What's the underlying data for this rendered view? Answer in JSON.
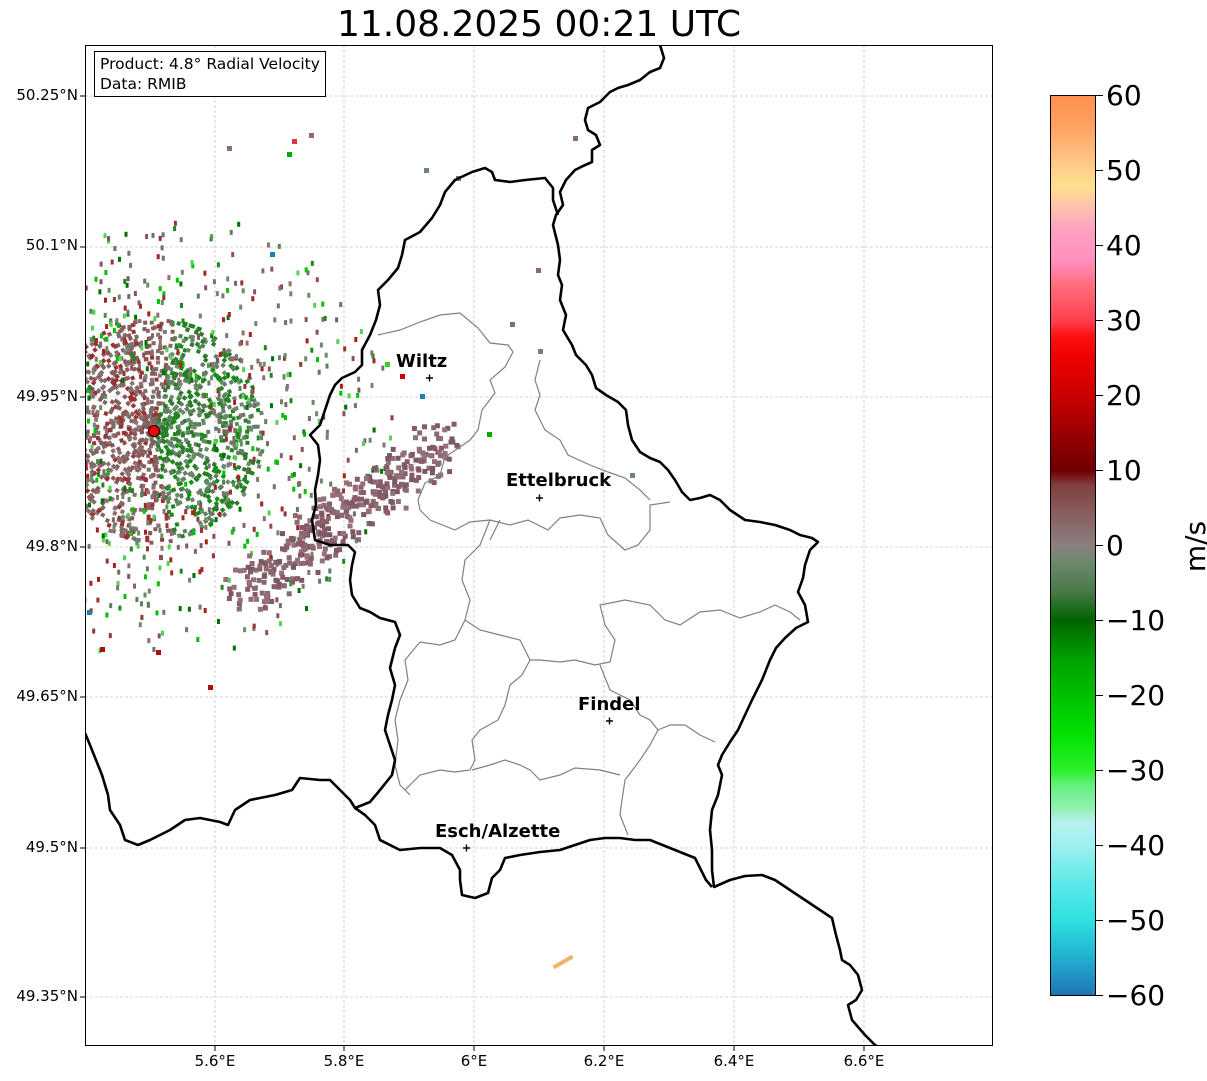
{
  "title": "11.08.2025 00:21 UTC",
  "info": {
    "product": "Product: 4.8° Radial Velocity",
    "data": "Data: RMIB"
  },
  "lat_labels": [
    "50.25°N",
    "50.1°N",
    "49.95°N",
    "49.8°N",
    "49.65°N",
    "49.5°N",
    "49.35°N"
  ],
  "lon_labels": [
    "5.6°E",
    "5.8°E",
    "6°E",
    "6.2°E",
    "6.4°E",
    "6.6°E"
  ],
  "cities": [
    {
      "name": "Wiltz"
    },
    {
      "name": "Ettelbruck"
    },
    {
      "name": "Findel"
    },
    {
      "name": "Esch/Alzette"
    }
  ],
  "colorbar": {
    "unit": "m/s",
    "ticks": [
      "60",
      "50",
      "40",
      "30",
      "20",
      "10",
      "0",
      "−10",
      "−20",
      "−30",
      "−40",
      "−50",
      "−60"
    ],
    "range": [
      -60,
      60
    ]
  },
  "colors": {
    "border": "#000000",
    "district": "#808080",
    "radar_site": "#ff0000"
  }
}
